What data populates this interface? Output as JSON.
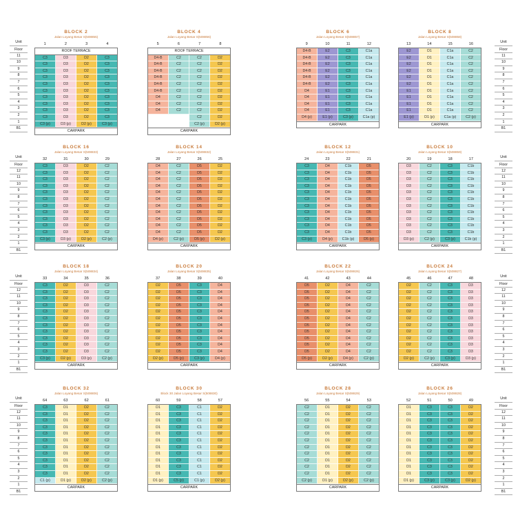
{
  "labels": {
    "unit": "Unit",
    "floor": "Floor",
    "carpark": "CARPARK",
    "roof": "ROOF TERRACE"
  },
  "floors": [
    "12",
    "11",
    "10",
    "9",
    "8",
    "7",
    "6",
    "5",
    "4",
    "3",
    "2",
    "1",
    "B1"
  ],
  "floors11": [
    "11",
    "10",
    "9",
    "8",
    "7",
    "6",
    "5",
    "4",
    "3",
    "2",
    "1",
    "B1"
  ],
  "colors": {
    "C1a": "#c5e9ee",
    "C1b": "#c5e9ee",
    "C1": "#c5e9ee",
    "C2": "#a6dcd6",
    "C3": "#46b8b2",
    "C5": "#46b8b2",
    "D1": "#fff1c2",
    "D2": "#f5c74f",
    "D3": "#f8d7dc",
    "D4": "#f5b49c",
    "D5": "#e88f6a",
    "D4-B": "#f5b49c",
    "E1": "#9d97d2",
    "E2": "#9d97d2"
  },
  "blocks": [
    {
      "title": "BLOCK 2",
      "addr": "Jalan Loyang Besar S(508855)",
      "units": [
        "1",
        "2",
        "3",
        "4"
      ],
      "roof": true,
      "cols": [
        [
          "C3",
          "C3 (p)",
          11
        ],
        [
          "D3",
          "D3 (p)",
          11
        ],
        [
          "D2",
          "D2 (p)",
          11
        ],
        [
          "C3",
          "C3 (p)",
          11
        ]
      ]
    },
    {
      "title": "BLOCK 4",
      "addr": "Jalan Loyang Besar S(508856)",
      "units": [
        "5",
        "6",
        "7",
        "8"
      ],
      "roof": true,
      "cols": [
        [
          "D4-B*6,D4*3",
          "",
          11,
          2
        ],
        [
          "C2*9",
          "",
          11,
          2
        ],
        [
          "C2",
          "C2 (p)",
          11
        ],
        [
          "D2",
          "D2 (p)",
          11
        ]
      ]
    },
    {
      "title": "BLOCK 6",
      "addr": "Jalan Loyang Besar S(508857)",
      "units": [
        "9",
        "10",
        "11",
        "12"
      ],
      "cols": [
        [
          "D4-B*6,D4*4",
          "D4 (p)",
          11
        ],
        [
          "E2*6,E1*4",
          "E1 (p)",
          11
        ],
        [
          "C3",
          "C3 (p)",
          11
        ],
        [
          "C1a",
          "C1a (p)",
          11
        ]
      ]
    },
    {
      "title": "BLOCK 8",
      "addr": "Jalan Loyang Besar S(508858)",
      "units": [
        "13",
        "14",
        "15",
        "16"
      ],
      "cols": [
        [
          "E2*6,E1*4",
          "E1 (p)",
          11
        ],
        [
          "D1",
          "D1 (p)",
          11
        ],
        [
          "C1a",
          "C1a (p)",
          11
        ],
        [
          "C2",
          "C2 (p)",
          11
        ]
      ]
    },
    {
      "title": "BLOCK 16",
      "addr": "Jalan Loyang Besar S(508833)",
      "units": [
        "32",
        "31",
        "30",
        "29"
      ],
      "cols": [
        [
          "C3",
          "C3 (p)",
          12
        ],
        [
          "D3",
          "D3 (p)",
          12
        ],
        [
          "D2",
          "D2 (p)",
          12
        ],
        [
          "C2",
          "C2 (p)",
          12
        ]
      ]
    },
    {
      "title": "BLOCK 14",
      "addr": "Jalan Loyang Besar S(508832)",
      "units": [
        "28",
        "27",
        "26",
        "25"
      ],
      "cols": [
        [
          "D4",
          "D4 (p)",
          12
        ],
        [
          "C2",
          "C2 (p)",
          12
        ],
        [
          "D5",
          "D5 (p)",
          12
        ],
        [
          "D2",
          "D2 (p)",
          12
        ]
      ]
    },
    {
      "title": "BLOCK 12",
      "addr": "Jalan Loyang Besar S(508831)",
      "units": [
        "24",
        "23",
        "22",
        "21"
      ],
      "cols": [
        [
          "C3",
          "C3 (p)",
          12
        ],
        [
          "D4",
          "D4 (p)",
          12
        ],
        [
          "C1b",
          "C1b (p)",
          12
        ],
        [
          "D5",
          "D5 (p)",
          12
        ]
      ]
    },
    {
      "title": "BLOCK 10",
      "addr": "Jalan Loyang Besar S(508859)",
      "units": [
        "20",
        "19",
        "18",
        "17"
      ],
      "cols": [
        [
          "D3",
          "D3 (p)",
          12
        ],
        [
          "C2",
          "C2 (p)",
          12
        ],
        [
          "C3",
          "C3 (p)",
          12
        ],
        [
          "C1b",
          "C1b (p)",
          12
        ]
      ]
    },
    {
      "title": "BLOCK 18",
      "addr": "Jalan Loyang Besar S(508834)",
      "units": [
        "33",
        "34",
        "35",
        "36"
      ],
      "cols": [
        [
          "C3",
          "C3 (p)",
          12
        ],
        [
          "D2",
          "D2 (p)",
          12
        ],
        [
          "D3",
          "D3 (p)",
          12
        ],
        [
          "C2",
          "C2 (p)",
          12
        ]
      ]
    },
    {
      "title": "BLOCK 20",
      "addr": "Jalan Loyang Besar S(508835)",
      "units": [
        "37",
        "38",
        "39",
        "40"
      ],
      "cols": [
        [
          "D2",
          "D2 (p)",
          12
        ],
        [
          "D5",
          "D5 (p)",
          12
        ],
        [
          "C3",
          "C3 (p)",
          12
        ],
        [
          "D4",
          "D4 (p)",
          12
        ]
      ]
    },
    {
      "title": "BLOCK 22",
      "addr": "Jalan Loyang Besar S(508826)",
      "units": [
        "41",
        "42",
        "43",
        "44"
      ],
      "cols": [
        [
          "D5",
          "D5 (p)",
          12
        ],
        [
          "D2",
          "D2 (p)",
          12
        ],
        [
          "D4",
          "D4 (p)",
          12
        ],
        [
          "C2",
          "C2 (p)",
          12
        ]
      ]
    },
    {
      "title": "BLOCK 24",
      "addr": "Jalan Loyang Besar S(508827)",
      "units": [
        "45",
        "46",
        "47",
        "48"
      ],
      "cols": [
        [
          "D2",
          "D2 (p)",
          12
        ],
        [
          "C2",
          "C2 (p)",
          12
        ],
        [
          "C3",
          "C3 (p)",
          12
        ],
        [
          "D3",
          "D3 (p)",
          12
        ]
      ]
    },
    {
      "title": "BLOCK 32",
      "addr": "Jalan Loyang Besar S(508806)",
      "units": [
        "64",
        "63",
        "62",
        "61"
      ],
      "cols": [
        [
          "C3",
          "C1 (p)",
          12
        ],
        [
          "D1",
          "D1 (p)",
          12
        ],
        [
          "D2",
          "D2 (p)",
          12
        ],
        [
          "C2",
          "C2 (p)",
          12
        ]
      ]
    },
    {
      "title": "BLOCK 30",
      "addr": "Block 30 Jalan Loyang Besar S(508830)",
      "units": [
        "60",
        "59",
        "58",
        "57"
      ],
      "cols": [
        [
          "D1",
          "D1 (p)",
          12
        ],
        [
          "C3",
          "C5 (p)",
          12
        ],
        [
          "C1",
          "C1 (p)",
          12
        ],
        [
          "D2",
          "D2 (p)",
          12
        ]
      ]
    },
    {
      "title": "BLOCK 28",
      "addr": "Jalan Loyang Besar S(508829)",
      "units": [
        "56",
        "55",
        "54",
        "53"
      ],
      "cols": [
        [
          "C2",
          "C2 (p)",
          12
        ],
        [
          "D1",
          "D1 (p)",
          12
        ],
        [
          "D2",
          "D2 (p)",
          12
        ],
        [
          "C2",
          "C2 (p)",
          12
        ]
      ]
    },
    {
      "title": "BLOCK 26",
      "addr": "Jalan Loyang Besar S(508828)",
      "units": [
        "52",
        "51",
        "50",
        "49"
      ],
      "cols": [
        [
          "D1",
          "D1 (p)",
          12
        ],
        [
          "C3",
          "C3 (p)",
          12
        ],
        [
          "C3",
          "C3 (p)",
          12
        ],
        [
          "D2",
          "D2 (p)",
          12
        ]
      ]
    }
  ]
}
